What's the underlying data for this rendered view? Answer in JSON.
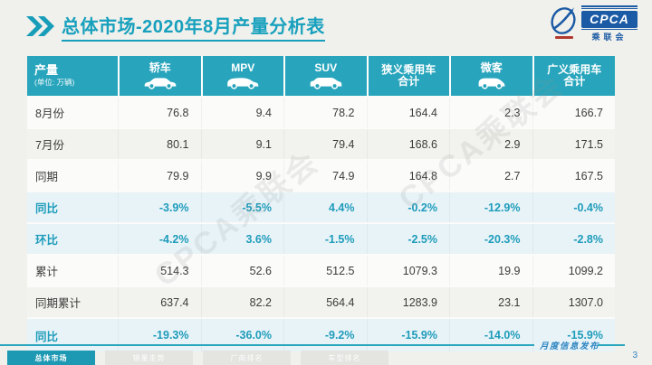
{
  "title": {
    "emphasis": "总体市场",
    "rest": "-2020年8月产量分析表"
  },
  "logo": {
    "acronym": "CPCA",
    "chinese": "乘联会"
  },
  "table": {
    "corner_label": "产量",
    "corner_unit": "(单位: 万辆)",
    "columns": [
      {
        "key": "sedan",
        "label": "轿车",
        "icon": "sedan-icon"
      },
      {
        "key": "mpv",
        "label": "MPV",
        "icon": "mpv-icon"
      },
      {
        "key": "suv",
        "label": "SUV",
        "icon": "suv-icon"
      },
      {
        "key": "narrow-pv-total",
        "label": "狭义乘用车",
        "label2": "合计"
      },
      {
        "key": "microvan",
        "label": "微客",
        "icon": "microvan-icon"
      },
      {
        "key": "broad-pv-total",
        "label": "广义乘用车",
        "label2": "合计"
      }
    ],
    "rows": [
      {
        "label": "8月份",
        "type": "normal",
        "values": [
          "76.8",
          "9.4",
          "78.2",
          "164.4",
          "2.3",
          "166.7"
        ]
      },
      {
        "label": "7月份",
        "type": "alt",
        "values": [
          "80.1",
          "9.1",
          "79.4",
          "168.6",
          "2.9",
          "171.5"
        ]
      },
      {
        "label": "同期",
        "type": "normal",
        "values": [
          "79.9",
          "9.9",
          "74.9",
          "164.8",
          "2.7",
          "167.5"
        ]
      },
      {
        "label": "同比",
        "type": "pct",
        "values": [
          "-3.9%",
          "-5.5%",
          "4.4%",
          "-0.2%",
          "-12.9%",
          "-0.4%"
        ]
      },
      {
        "label": "环比",
        "type": "pct",
        "values": [
          "-4.2%",
          "3.6%",
          "-1.5%",
          "-2.5%",
          "-20.3%",
          "-2.8%"
        ]
      },
      {
        "label": "累计",
        "type": "normal",
        "values": [
          "514.3",
          "52.6",
          "512.5",
          "1079.3",
          "19.9",
          "1099.2"
        ]
      },
      {
        "label": "同期累计",
        "type": "alt",
        "values": [
          "637.4",
          "82.2",
          "564.4",
          "1283.9",
          "23.1",
          "1307.0"
        ]
      },
      {
        "label": "同比",
        "type": "pct",
        "values": [
          "-19.3%",
          "-36.0%",
          "-9.2%",
          "-15.9%",
          "-14.0%",
          "-15.9%"
        ]
      }
    ]
  },
  "watermark": "CPCA乘联会",
  "footer": {
    "note": "月度信息发布",
    "page": "3",
    "tabs": [
      {
        "label": "总体市场",
        "active": true
      },
      {
        "label": "销量走势",
        "active": false
      },
      {
        "label": "厂商排名",
        "active": false
      },
      {
        "label": "车型排名",
        "active": false
      }
    ]
  },
  "colors": {
    "header_teal": "#28a5bc",
    "title_teal": "#17a0bd",
    "pct_teal": "#1e9cba",
    "logo_blue": "#1b5aa5",
    "footer_blue": "#2f86c1",
    "pct_row_bg": "#e8f3f8"
  }
}
